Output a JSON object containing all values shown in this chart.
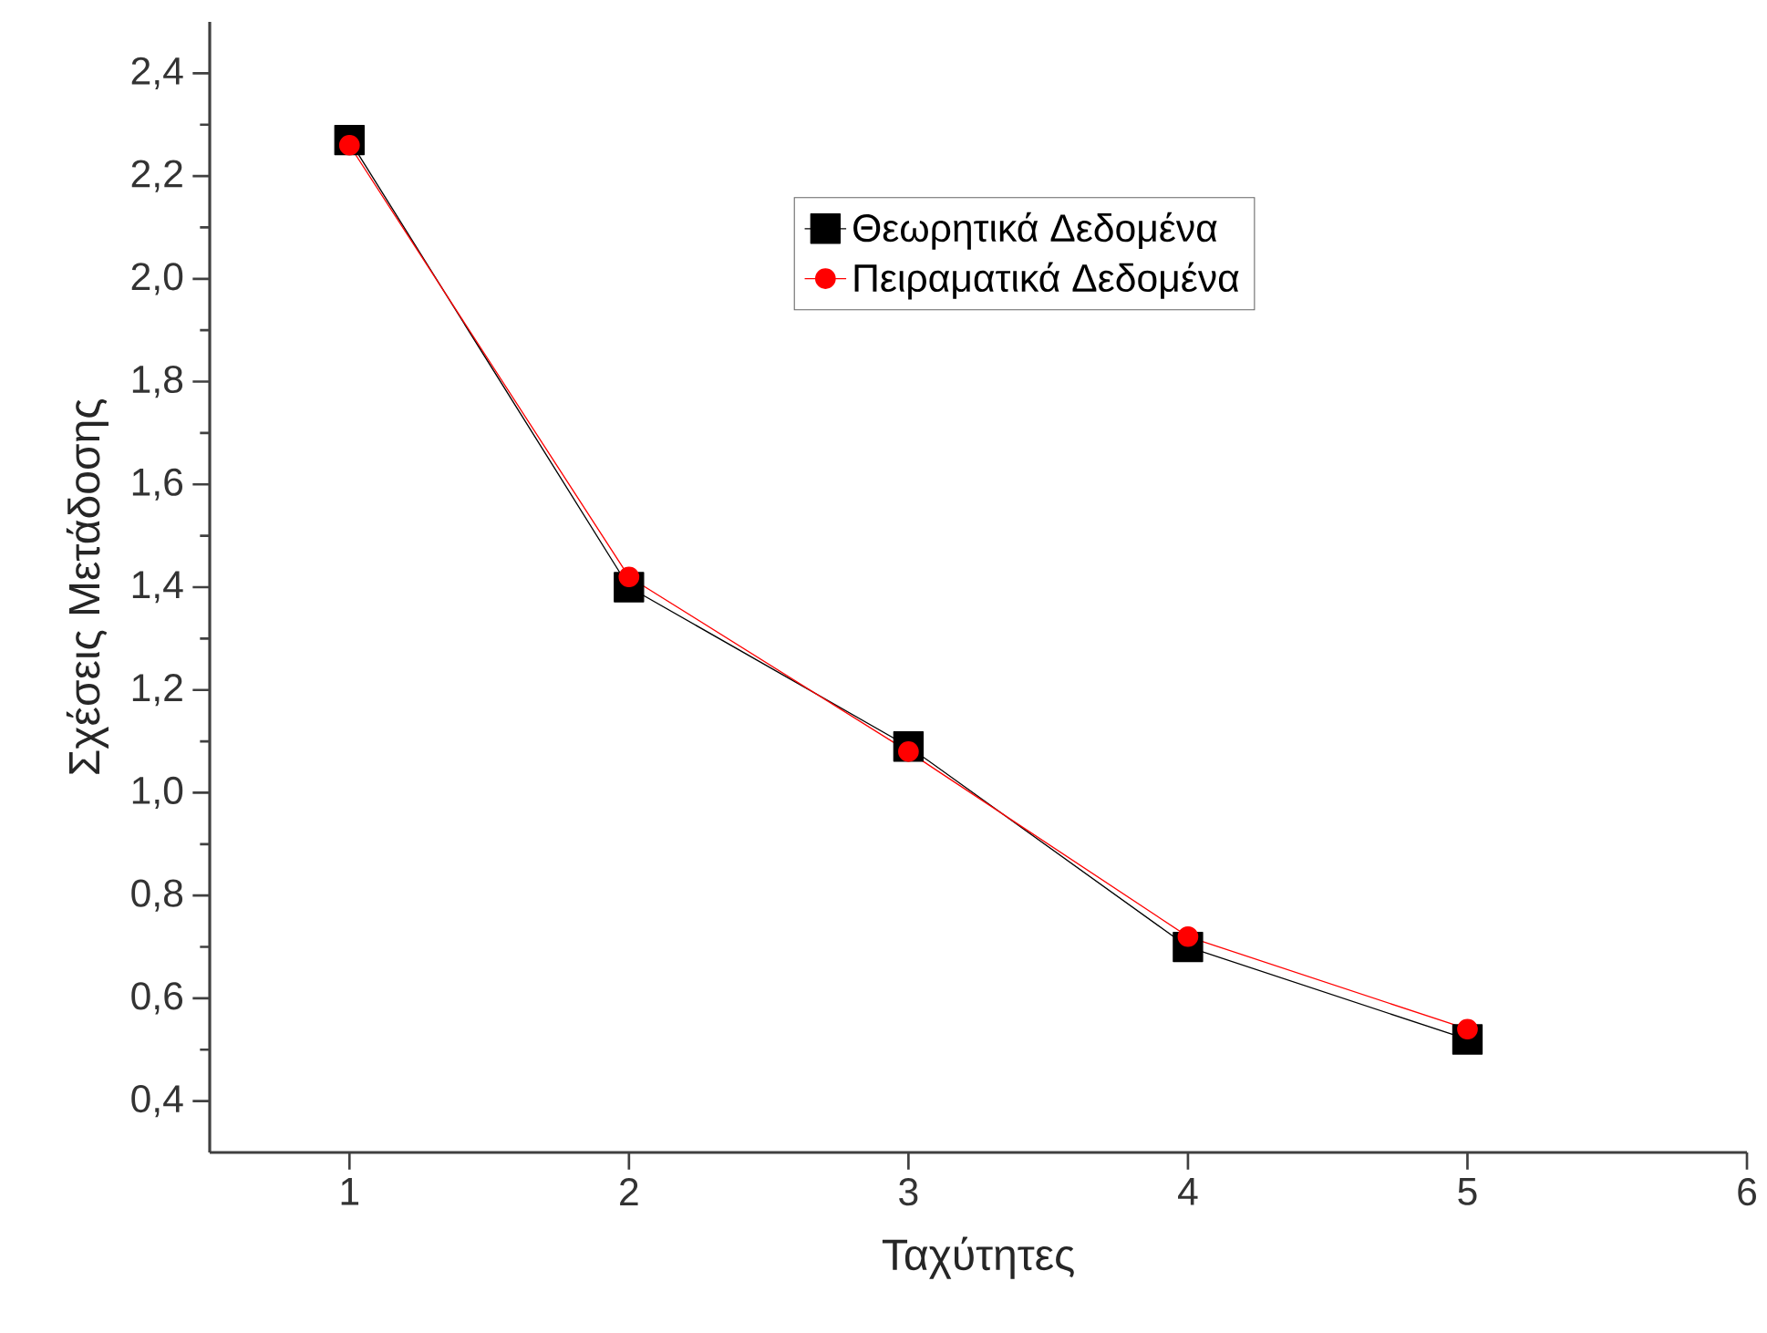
{
  "chart_data": {
    "type": "line",
    "xlabel": "Ταχύτητες",
    "ylabel": "Σχέσεις Μετάδοσης",
    "x": [
      1,
      2,
      3,
      4,
      5
    ],
    "series": [
      {
        "name": "Θεωρητικά Δεδομένα",
        "color": "#000000",
        "marker": "square",
        "values": [
          2.27,
          1.4,
          1.09,
          0.7,
          0.52
        ]
      },
      {
        "name": "Πειραματικά Δεδομένα",
        "color": "#ff0000",
        "marker": "circle",
        "values": [
          2.26,
          1.42,
          1.08,
          0.72,
          0.54
        ]
      }
    ],
    "xlim": [
      0.5,
      6
    ],
    "xticks": [
      1,
      2,
      3,
      4,
      5,
      6
    ],
    "ylim": [
      0.3,
      2.5
    ],
    "yticks": [
      {
        "value": 0.4,
        "label": "0,4"
      },
      {
        "value": 0.6,
        "label": "0,6"
      },
      {
        "value": 0.8,
        "label": "0,8"
      },
      {
        "value": 1.0,
        "label": "1,0"
      },
      {
        "value": 1.2,
        "label": "1,2"
      },
      {
        "value": 1.4,
        "label": "1,4"
      },
      {
        "value": 1.6,
        "label": "1,6"
      },
      {
        "value": 1.8,
        "label": "1,8"
      },
      {
        "value": 2.0,
        "label": "2,0"
      },
      {
        "value": 2.2,
        "label": "2,2"
      },
      {
        "value": 2.4,
        "label": "2,4"
      }
    ],
    "grid": false,
    "legend": "top right",
    "line_style": "solid"
  }
}
